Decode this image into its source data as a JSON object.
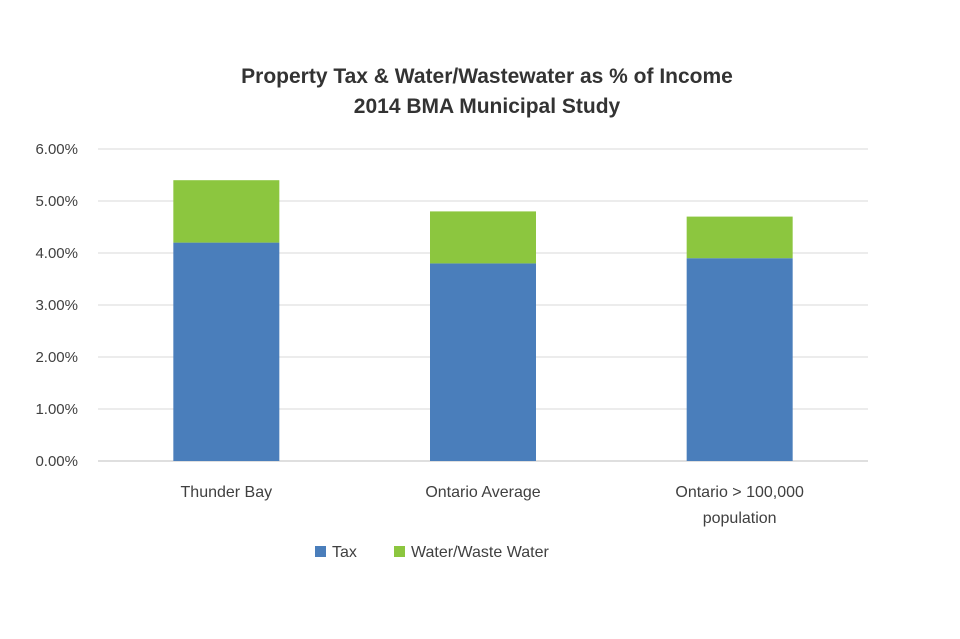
{
  "chart_data": {
    "type": "bar",
    "stacked": true,
    "title": "Property Tax & Water/Wastewater as % of Income",
    "subtitle": "2014 BMA Municipal Study",
    "xlabel": "",
    "ylabel": "",
    "ylim": [
      0,
      6
    ],
    "y_ticks": [
      0,
      1,
      2,
      3,
      4,
      5,
      6
    ],
    "y_tick_labels": [
      "0.00%",
      "1.00%",
      "2.00%",
      "3.00%",
      "4.00%",
      "5.00%",
      "6.00%"
    ],
    "grid": true,
    "legend_position": "bottom",
    "categories": [
      [
        "Thunder Bay"
      ],
      [
        "Ontario Average"
      ],
      [
        "Ontario > 100,000",
        "population"
      ]
    ],
    "series": [
      {
        "name": "Tax",
        "color": "#4a7ebb",
        "values": [
          4.2,
          3.8,
          3.9
        ]
      },
      {
        "name": "Water/Waste Water",
        "color": "#8cc63f",
        "values": [
          1.2,
          1.0,
          0.8
        ]
      }
    ]
  }
}
